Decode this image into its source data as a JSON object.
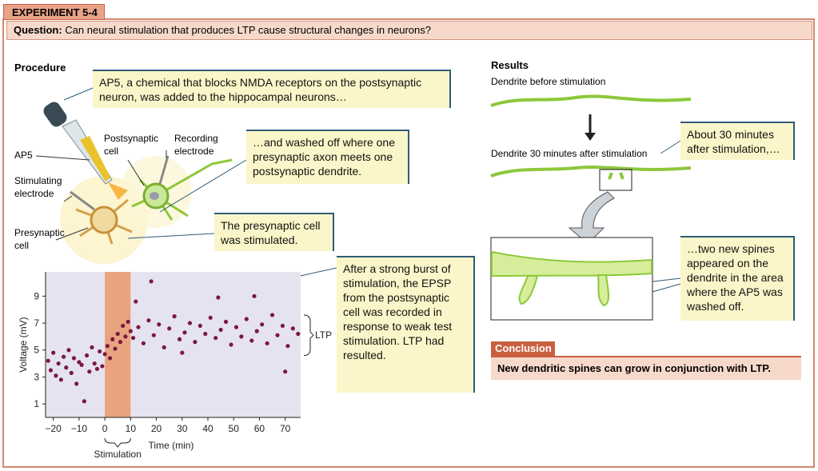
{
  "header": {
    "label": "EXPERIMENT 5-4",
    "question_label": "Question:",
    "question": "Can neural stimulation that produces LTP cause structural changes in neurons?"
  },
  "procedure": {
    "title": "Procedure",
    "callouts": [
      "AP5, a chemical that blocks NMDA receptors on the postsynaptic neuron, was added to the hippocampal neurons…",
      "…and washed off where one presynaptic axon meets one postsynaptic dendrite.",
      "The presynaptic cell was stimulated.",
      "After a strong burst of stimulation, the EPSP from the postsynaptic cell was recorded in response to weak test stimulation. LTP had resulted."
    ],
    "labels": {
      "ap5": "AP5",
      "stimulating": "Stimulating electrode",
      "presynaptic": "Presynaptic cell",
      "postsynaptic": "Postsynaptic cell",
      "recording": "Recording electrode"
    }
  },
  "chart": {
    "type": "scatter",
    "xlabel": "Time (min)",
    "ylabel": "Voltage (mV)",
    "color": "#7b1840",
    "xlim": [
      -23,
      76
    ],
    "ylim": [
      0,
      10.8
    ],
    "xticks": [
      {
        "value": -20,
        "label": "−20"
      },
      {
        "value": -10,
        "label": "−10"
      },
      0,
      10,
      20,
      30,
      40,
      50,
      60,
      70
    ],
    "yticks": [
      1,
      3,
      5,
      7,
      9
    ],
    "stimulation_window": [
      0,
      10
    ],
    "stimulation_label": "Stimulation",
    "ltp_label": "LTP",
    "x": [
      -22,
      -21,
      -20,
      -19,
      -18,
      -17,
      -16,
      -15,
      -14,
      -13,
      -12,
      -11,
      -10,
      -9,
      -8,
      -7,
      -6,
      -5,
      -4,
      -3,
      -2,
      -1,
      0,
      1,
      2,
      3,
      4,
      5,
      6,
      7,
      8,
      9,
      10,
      11,
      12,
      13,
      15,
      17,
      19,
      21,
      23,
      25,
      27,
      29,
      31,
      33,
      35,
      37,
      39,
      41,
      43,
      45,
      47,
      49,
      51,
      53,
      55,
      57,
      59,
      61,
      63,
      65,
      67,
      69,
      71,
      73,
      75,
      18,
      30,
      44,
      58,
      70
    ],
    "y": [
      4.2,
      3.5,
      4.8,
      3.1,
      4.0,
      2.8,
      4.5,
      3.7,
      5.0,
      3.3,
      4.4,
      2.5,
      4.1,
      3.9,
      1.2,
      4.6,
      3.4,
      5.2,
      4.0,
      3.6,
      4.9,
      3.8,
      4.7,
      5.3,
      4.4,
      5.8,
      5.1,
      6.2,
      5.6,
      6.8,
      6.0,
      7.1,
      6.4,
      5.9,
      8.6,
      6.7,
      5.5,
      7.2,
      6.1,
      6.9,
      5.2,
      6.6,
      7.5,
      5.8,
      6.3,
      7.0,
      5.6,
      6.8,
      6.2,
      7.4,
      5.9,
      6.5,
      7.1,
      5.4,
      6.7,
      6.0,
      7.3,
      5.7,
      6.4,
      6.9,
      5.5,
      7.6,
      6.1,
      6.8,
      5.3,
      6.6,
      6.2,
      10.1,
      4.8,
      8.9,
      9.0,
      3.4
    ]
  },
  "results": {
    "title": "Results",
    "before": "Dendrite before stimulation",
    "after": "Dendrite 30 minutes after stimulation",
    "callouts": [
      "About 30 minutes after stimulation,…",
      "…two new spines appeared on the dendrite in the area where the AP5 was washed off."
    ]
  },
  "conclusion": {
    "label": "Conclusion",
    "text": "New dendritic spines can grow in conjunction with LTP."
  }
}
